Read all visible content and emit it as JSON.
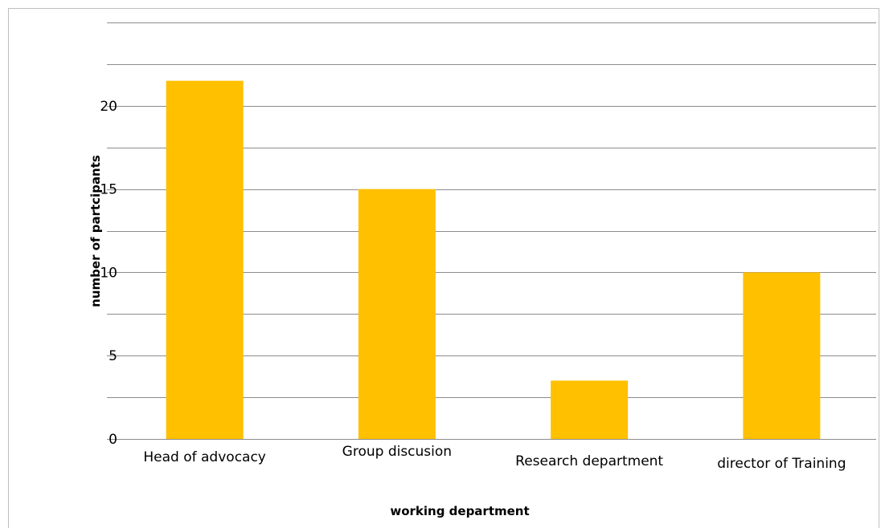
{
  "chart_data": {
    "type": "bar",
    "categories": [
      "Head of advocacy",
      "Group discusion",
      "Research department",
      "director of Training"
    ],
    "values": [
      21.5,
      15,
      3.5,
      10
    ],
    "xlabel": "working department",
    "ylabel": "number of partcipants",
    "ylim": [
      0,
      25
    ],
    "yticks": [
      0,
      5,
      10,
      15,
      20
    ],
    "gridlines": [
      0,
      2.5,
      5,
      7.5,
      10,
      12.5,
      15,
      17.5,
      20,
      22.5,
      25
    ],
    "grid": true,
    "legend": "none",
    "bar_color": "#ffc000",
    "grid_color": "#8c8c8c"
  }
}
